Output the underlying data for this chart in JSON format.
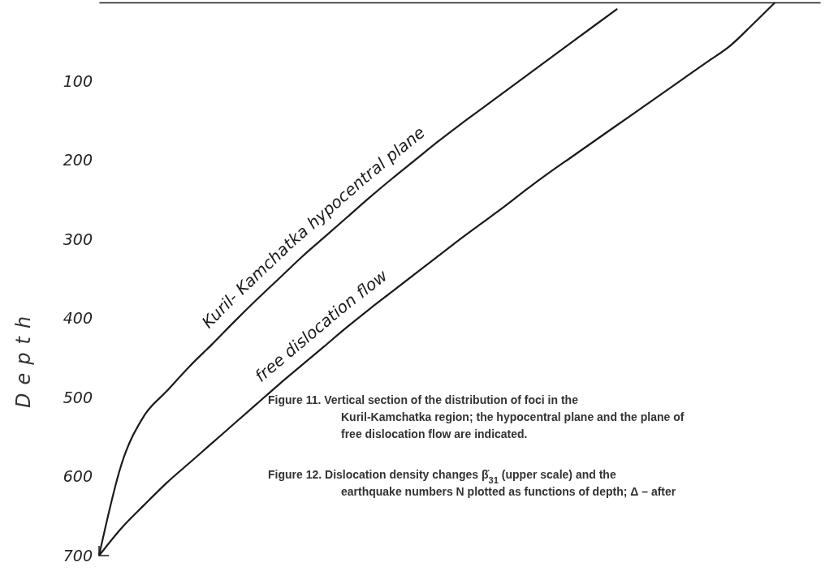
{
  "chart_data": {
    "type": "line",
    "ylabel": "Depth",
    "ylim": [
      700,
      0
    ],
    "yticks": [
      100,
      200,
      300,
      400,
      500,
      600,
      700
    ],
    "tick_labels": "y",
    "grid": false,
    "marker": "none",
    "line_style": "solid",
    "categories": [
      null,
      null,
      null,
      null,
      null,
      null,
      null,
      null,
      null,
      null,
      null,
      null,
      null,
      null,
      null,
      null,
      null,
      null,
      null,
      null,
      null,
      null,
      null,
      null,
      null,
      null,
      null,
      null,
      null,
      null,
      null,
      null,
      null
    ],
    "series": [
      {
        "name": "Kuril- Kamchatka hypocentral plane",
        "color": "#1a1a1a",
        "values": [
          700,
          584,
          523,
          492,
          461,
          433,
          404,
          376,
          349,
          322,
          297,
          272,
          247,
          223,
          200,
          177,
          155,
          134,
          113,
          92,
          71,
          50,
          29,
          8,
          null,
          null,
          null,
          null,
          null,
          null,
          null,
          null,
          null
        ]
      },
      {
        "name": "free dislocation flow",
        "color": "#1a1a1a",
        "values": [
          700,
          665,
          636,
          608,
          583,
          558,
          533,
          508,
          483,
          459,
          435,
          411,
          388,
          366,
          344,
          322,
          300,
          279,
          258,
          236,
          215,
          195,
          175,
          155,
          135,
          115,
          95,
          75,
          55,
          28,
          0,
          null,
          null
        ]
      }
    ],
    "annotations": [
      "Figure 11. Vertical section of the distribution of foci in the Kuril-Kamchatka region; the hypocentral plane and the plane of free dislocation flow are indicated.",
      "Figure 12. Dislocation density changes β̇$_{31}$ (upper scale) and the earthquake numbers N plotted as functions of depth; Δ – after"
    ]
  }
}
